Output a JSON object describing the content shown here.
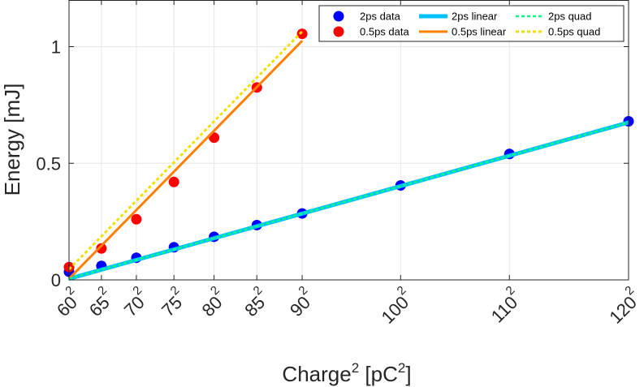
{
  "chart_data": {
    "type": "scatter",
    "xlabel": "Charge",
    "xlabel_sup": "2",
    "xlabel_unit": "[pC",
    "xlabel_unit_sup": "2",
    "xlabel_unit_close": "]",
    "ylabel": "Energy [mJ]",
    "xlim": [
      3600,
      14400
    ],
    "ylim": [
      0,
      1.2
    ],
    "grid": true,
    "legend_placement": "top-right",
    "x_ticks": [
      {
        "value": 3600,
        "base": "60",
        "exp": "2"
      },
      {
        "value": 4225,
        "base": "65",
        "exp": "2"
      },
      {
        "value": 4900,
        "base": "70",
        "exp": "2"
      },
      {
        "value": 5625,
        "base": "75",
        "exp": "2"
      },
      {
        "value": 6400,
        "base": "80",
        "exp": "2"
      },
      {
        "value": 7225,
        "base": "85",
        "exp": "2"
      },
      {
        "value": 8100,
        "base": "90",
        "exp": "2"
      },
      {
        "value": 10000,
        "base": "100",
        "exp": "2"
      },
      {
        "value": 12100,
        "base": "110",
        "exp": "2"
      },
      {
        "value": 14400,
        "base": "120",
        "exp": "2"
      }
    ],
    "y_ticks": [
      {
        "value": 0,
        "label": "0"
      },
      {
        "value": 0.5,
        "label": "0.5"
      },
      {
        "value": 1,
        "label": "1"
      }
    ],
    "series": [
      {
        "name": "2ps data",
        "kind": "points",
        "color": "#0000ff",
        "x": [
          3600,
          4225,
          4900,
          5625,
          6400,
          7225,
          8100,
          10000,
          12100,
          14400
        ],
        "y": [
          0.035,
          0.06,
          0.095,
          0.14,
          0.185,
          0.235,
          0.285,
          0.405,
          0.54,
          0.68
        ]
      },
      {
        "name": "0.5ps data",
        "kind": "points",
        "color": "#ff0000",
        "x": [
          3600,
          4225,
          4900,
          5625,
          6400,
          7225,
          8100
        ],
        "y": [
          0.055,
          0.135,
          0.26,
          0.42,
          0.61,
          0.825,
          1.055
        ]
      },
      {
        "name": "2ps linear",
        "kind": "line",
        "color": "#00bfff",
        "dash": "none",
        "width": 5,
        "x": [
          3600,
          14400
        ],
        "y": [
          0.005,
          0.675
        ]
      },
      {
        "name": "0.5ps linear",
        "kind": "line",
        "color": "#ff8000",
        "dash": "none",
        "width": 3,
        "x": [
          3600,
          8100
        ],
        "y": [
          0.005,
          1.025
        ]
      },
      {
        "name": "2ps quad",
        "kind": "line",
        "color": "#00ff80",
        "dash": "4,3",
        "width": 2.5,
        "x": [
          3600,
          14400
        ],
        "y": [
          0.005,
          0.675
        ]
      },
      {
        "name": "0.5ps quad",
        "kind": "line",
        "color": "#f0e000",
        "dash": "4,3",
        "width": 3,
        "x": [
          3600,
          8100
        ],
        "y": [
          0.045,
          1.065
        ]
      }
    ]
  }
}
